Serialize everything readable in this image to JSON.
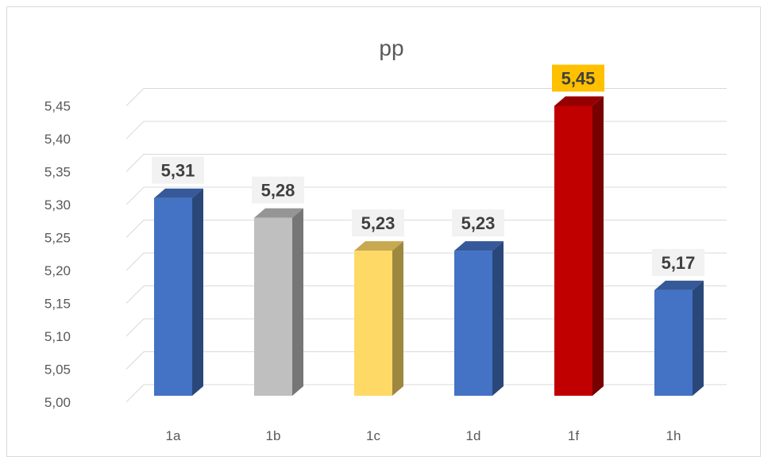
{
  "chart_data": {
    "type": "bar",
    "title": "pp",
    "categories": [
      "1a",
      "1b",
      "1c",
      "1d",
      "1f",
      "1h"
    ],
    "values": [
      5.31,
      5.28,
      5.23,
      5.23,
      5.45,
      5.17
    ],
    "value_labels": [
      "5,31",
      "5,28",
      "5,23",
      "5,23",
      "5,45",
      "5,17"
    ],
    "ylim": [
      5.0,
      5.45
    ],
    "yticks": [
      "5,00",
      "5,05",
      "5,10",
      "5,15",
      "5,20",
      "5,25",
      "5,30",
      "5,35",
      "5,40",
      "5,45"
    ],
    "grid": true,
    "legend": "none",
    "colors": [
      "#4472C4",
      "#BFBFBF",
      "#FFD966",
      "#4472C4",
      "#C00000",
      "#4472C4"
    ],
    "label_backgrounds": [
      "#F2F2F2",
      "#F2F2F2",
      "#F2F2F2",
      "#F2F2F2",
      "#FFC000",
      "#F2F2F2"
    ]
  }
}
